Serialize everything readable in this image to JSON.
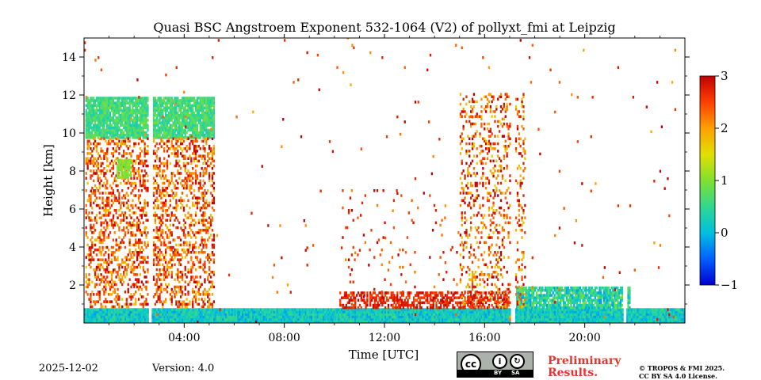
{
  "chart_data": {
    "type": "heatmap",
    "title": "Quasi BSC Angstroem Exponent 532-1064 (V2) of pollyxt_fmi at Leipzig",
    "xlabel": "Time [UTC]",
    "ylabel": "Height [km]",
    "x_range_hours": [
      0,
      24
    ],
    "y_range_km": [
      0,
      15
    ],
    "x_ticks": [
      {
        "value": 4,
        "label": "04:00"
      },
      {
        "value": 8,
        "label": "08:00"
      },
      {
        "value": 12,
        "label": "12:00"
      },
      {
        "value": 16,
        "label": "16:00"
      },
      {
        "value": 20,
        "label": "20:00"
      }
    ],
    "y_ticks": [
      {
        "value": 2,
        "label": "2"
      },
      {
        "value": 4,
        "label": "4"
      },
      {
        "value": 6,
        "label": "6"
      },
      {
        "value": 8,
        "label": "8"
      },
      {
        "value": 10,
        "label": "10"
      },
      {
        "value": 12,
        "label": "12"
      },
      {
        "value": 14,
        "label": "14"
      }
    ],
    "colorbar": {
      "range": [
        -1,
        3
      ],
      "ticks": [
        {
          "value": 3,
          "label": "3"
        },
        {
          "value": 2,
          "label": "2"
        },
        {
          "value": 1,
          "label": "1"
        },
        {
          "value": 0,
          "label": "0"
        },
        {
          "value": -1,
          "label": "−1"
        }
      ]
    },
    "regions": [
      {
        "name": "cirrus-layer",
        "t": [
          0.05,
          5.2
        ],
        "h": [
          9.7,
          11.8
        ],
        "value": 0.6,
        "spread": 0.35,
        "density": 0.9
      },
      {
        "name": "aerosol-scatter-morning",
        "t": [
          0.05,
          5.2
        ],
        "h": [
          0.8,
          9.7
        ],
        "value": 2.4,
        "spread": 0.7,
        "density": 0.35
      },
      {
        "name": "green-patch",
        "t": [
          1.3,
          1.85
        ],
        "h": [
          7.6,
          8.6
        ],
        "value": 1.0,
        "spread": 0.2,
        "density": 0.8
      },
      {
        "name": "boundary-layer-day",
        "t": [
          0.0,
          24.0
        ],
        "h": [
          0.0,
          0.75
        ],
        "value": 0.2,
        "spread": 0.4,
        "density": 1.0
      },
      {
        "name": "residual-layer-evening",
        "t": [
          17.2,
          21.8
        ],
        "h": [
          0.75,
          1.9
        ],
        "value": 0.4,
        "spread": 0.6,
        "density": 0.85
      },
      {
        "name": "red-layer-afternoon",
        "t": [
          10.2,
          17.0
        ],
        "h": [
          0.75,
          1.6
        ],
        "value": 2.7,
        "spread": 0.3,
        "density": 0.55
      },
      {
        "name": "scatter-afternoon",
        "t": [
          15.0,
          17.6
        ],
        "h": [
          0.8,
          12.0
        ],
        "value": 2.4,
        "spread": 0.8,
        "density": 0.2
      },
      {
        "name": "scatter-midday",
        "t": [
          10.3,
          15.0
        ],
        "h": [
          0.8,
          7.0
        ],
        "value": 2.6,
        "spread": 0.5,
        "density": 0.03
      },
      {
        "name": "noise-top",
        "t": [
          0.0,
          24.0
        ],
        "h": [
          0.0,
          15.0
        ],
        "value": 2.5,
        "spread": 0.6,
        "density": 0.004
      }
    ],
    "gaps_hours": [
      [
        2.55,
        2.7
      ],
      [
        17.0,
        17.2
      ],
      [
        21.5,
        21.65
      ]
    ]
  },
  "footer": {
    "date": "2025-12-02",
    "version": "Version: 4.0",
    "preliminary": "Preliminary Results.",
    "copyright": "© TROPOS & FMI 2025.",
    "license": "CC BY SA 4.0 License.",
    "cc_badge": {
      "by": "BY",
      "sa": "SA"
    }
  },
  "colors": {
    "preliminary": "#e8332e"
  }
}
